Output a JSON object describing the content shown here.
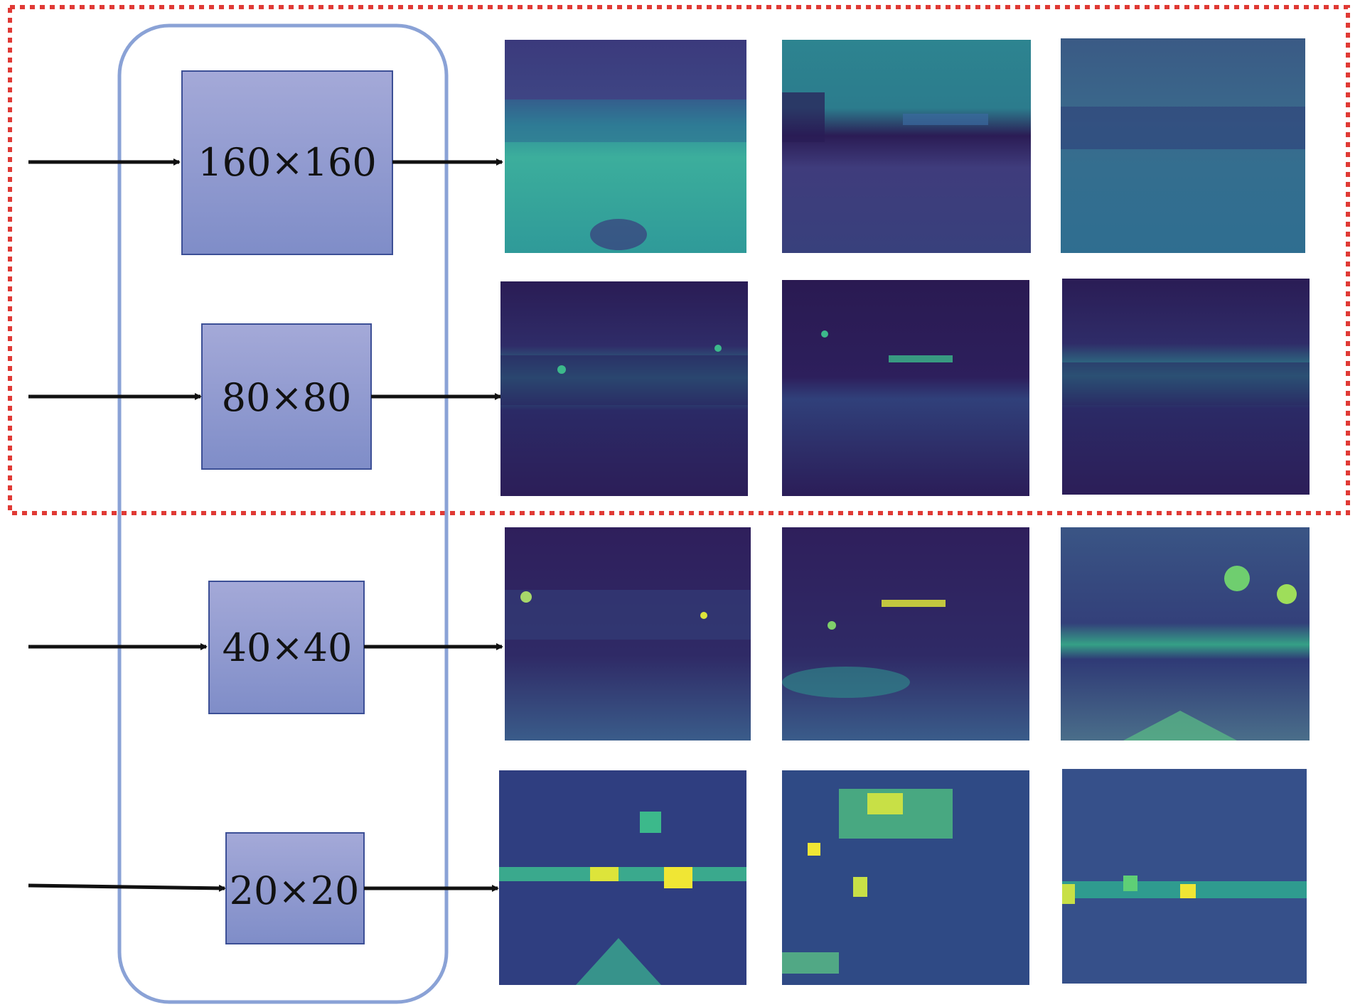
{
  "scales": [
    {
      "label": "160×160"
    },
    {
      "label": "80×80"
    },
    {
      "label": "40×40"
    },
    {
      "label": "20×20"
    }
  ],
  "colors": {
    "box_fill_top": "#a4a9d8",
    "box_fill_bottom": "#7f8dc8",
    "box_stroke": "#3c4f96",
    "group_stroke": "#8aa2d6",
    "highlight_dash": "#e03a35",
    "arrow": "#111111",
    "map_dark": "#3a2066",
    "map_mid": "#2f7f9a",
    "map_green": "#3cb98b",
    "map_yellow": "#dde43a"
  },
  "icons": {
    "arrow": "arrow-right-icon"
  }
}
